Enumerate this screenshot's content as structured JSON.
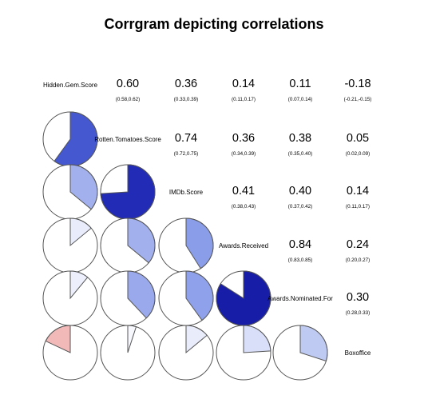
{
  "chart_data": {
    "type": "corrgram",
    "title": "Corrgram depicting correlations",
    "variables": [
      "Hidden.Gem.Score",
      "Rotten.Tomatoes.Score",
      "IMDb.Score",
      "Awards.Received",
      "Awards.Nominated.For",
      "Boxoffice"
    ],
    "lower_panel": "pie",
    "upper_panel": "correlation coefficient with 95% confidence interval",
    "colors": {
      "positive_strong": "#0a0a8c",
      "positive_weak": "#ffffff",
      "negative": "#f4a8a0",
      "outline": "#555555"
    },
    "correlations": [
      {
        "row": "Hidden.Gem.Score",
        "col": "Rotten.Tomatoes.Score",
        "r": 0.6,
        "r_label": "0.60",
        "ci_label": "(0.58,0.62)"
      },
      {
        "row": "Hidden.Gem.Score",
        "col": "IMDb.Score",
        "r": 0.36,
        "r_label": "0.36",
        "ci_label": "(0.33,0.39)"
      },
      {
        "row": "Hidden.Gem.Score",
        "col": "Awards.Received",
        "r": 0.14,
        "r_label": "0.14",
        "ci_label": "(0.11,0.17)"
      },
      {
        "row": "Hidden.Gem.Score",
        "col": "Awards.Nominated.For",
        "r": 0.11,
        "r_label": "0.11",
        "ci_label": "(0.07,0.14)"
      },
      {
        "row": "Hidden.Gem.Score",
        "col": "Boxoffice",
        "r": -0.18,
        "r_label": "-0.18",
        "ci_label": "(-0.21,-0.15)"
      },
      {
        "row": "Rotten.Tomatoes.Score",
        "col": "IMDb.Score",
        "r": 0.74,
        "r_label": "0.74",
        "ci_label": "(0.72,0.75)"
      },
      {
        "row": "Rotten.Tomatoes.Score",
        "col": "Awards.Received",
        "r": 0.36,
        "r_label": "0.36",
        "ci_label": "(0.34,0.39)"
      },
      {
        "row": "Rotten.Tomatoes.Score",
        "col": "Awards.Nominated.For",
        "r": 0.38,
        "r_label": "0.38",
        "ci_label": "(0.35,0.40)"
      },
      {
        "row": "Rotten.Tomatoes.Score",
        "col": "Boxoffice",
        "r": 0.05,
        "r_label": "0.05",
        "ci_label": "(0.02,0.09)"
      },
      {
        "row": "IMDb.Score",
        "col": "Awards.Received",
        "r": 0.41,
        "r_label": "0.41",
        "ci_label": "(0.38,0.43)"
      },
      {
        "row": "IMDb.Score",
        "col": "Awards.Nominated.For",
        "r": 0.4,
        "r_label": "0.40",
        "ci_label": "(0.37,0.42)"
      },
      {
        "row": "IMDb.Score",
        "col": "Boxoffice",
        "r": 0.14,
        "r_label": "0.14",
        "ci_label": "(0.11,0.17)"
      },
      {
        "row": "Awards.Received",
        "col": "Awards.Nominated.For",
        "r": 0.84,
        "r_label": "0.84",
        "ci_label": "(0.83,0.85)"
      },
      {
        "row": "Awards.Received",
        "col": "Boxoffice",
        "r": 0.24,
        "r_label": "0.24",
        "ci_label": "(0.20,0.27)"
      },
      {
        "row": "Awards.Nominated.For",
        "col": "Boxoffice",
        "r": 0.3,
        "r_label": "0.30",
        "ci_label": "(0.28,0.33)"
      }
    ]
  }
}
